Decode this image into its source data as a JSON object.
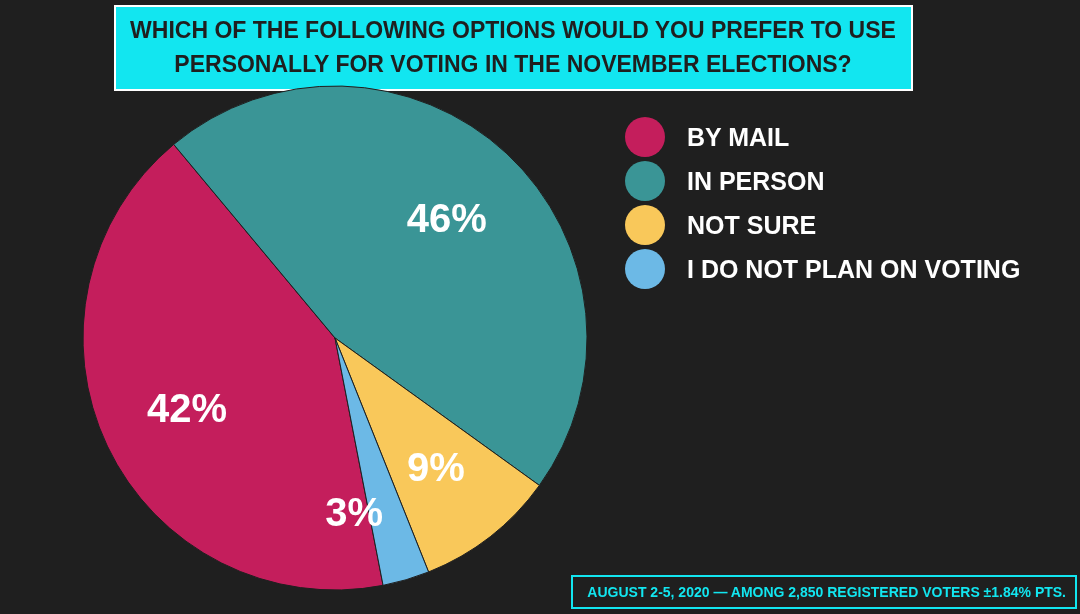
{
  "chart_data": {
    "type": "pie",
    "title": "WHICH OF THE FOLLOWING OPTIONS WOULD YOU PREFER TO USE PERSONALLY FOR VOTING IN THE NOVEMBER ELECTIONS?",
    "categories": [
      "BY MAIL",
      "IN PERSON",
      "NOT SURE",
      "I DO NOT PLAN ON VOTING"
    ],
    "values": [
      42,
      46,
      9,
      3
    ],
    "colors": [
      "#c41e5c",
      "#3a9596",
      "#f9c85a",
      "#6cb9e6"
    ],
    "value_labels": [
      "42%",
      "46%",
      "9%",
      "3%"
    ],
    "legend": "right",
    "annotations": [
      "AUGUST 2-5, 2020 — AMONG 2,850 REGISTERED VOTERS ±1.84% PTS."
    ]
  }
}
